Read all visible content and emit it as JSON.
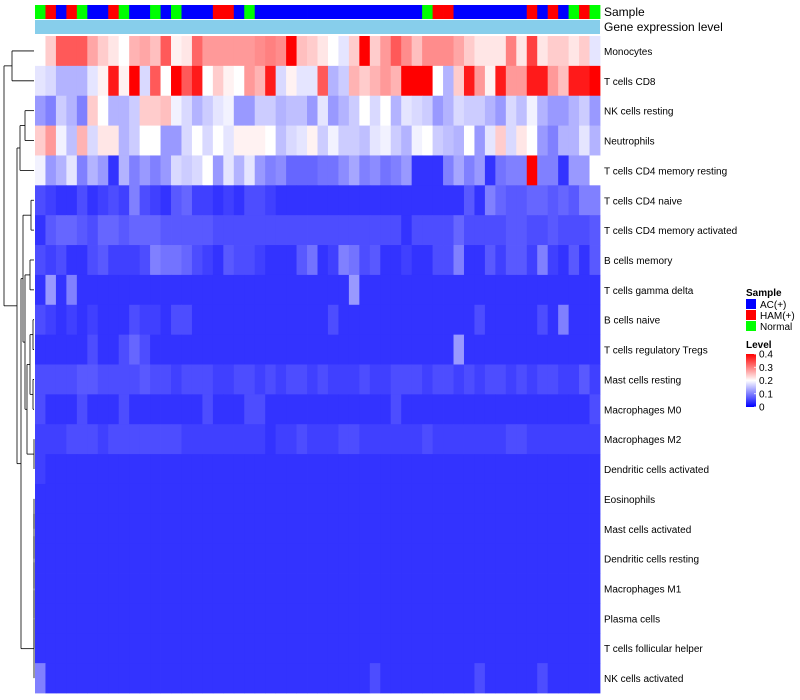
{
  "chart_data": {
    "type": "heatmap",
    "annotation_rows": {
      "sample": {
        "label": "Sample",
        "values": [
          "Normal",
          "HAM(+)",
          "AC(+)",
          "HAM(+)",
          "Normal",
          "AC(+)",
          "AC(+)",
          "HAM(+)",
          "Normal",
          "AC(+)",
          "AC(+)",
          "Normal",
          "AC(+)",
          "Normal",
          "AC(+)",
          "AC(+)",
          "AC(+)",
          "HAM(+)",
          "HAM(+)",
          "AC(+)",
          "Normal",
          "AC(+)",
          "AC(+)",
          "AC(+)",
          "AC(+)",
          "AC(+)",
          "AC(+)",
          "AC(+)",
          "AC(+)",
          "AC(+)",
          "AC(+)",
          "AC(+)",
          "AC(+)",
          "AC(+)",
          "AC(+)",
          "AC(+)",
          "AC(+)",
          "Normal",
          "HAM(+)",
          "HAM(+)",
          "AC(+)",
          "AC(+)",
          "AC(+)",
          "AC(+)",
          "AC(+)",
          "AC(+)",
          "AC(+)",
          "HAM(+)",
          "AC(+)",
          "HAM(+)",
          "AC(+)",
          "Normal",
          "HAM(+)",
          "Normal"
        ]
      },
      "gene_expression": {
        "label": "Gene expression level",
        "color": "#87CEEB"
      }
    },
    "legend_sample": {
      "title": "Sample",
      "entries": [
        {
          "label": "AC(+)",
          "color": "#0000FF"
        },
        {
          "label": "HAM(+)",
          "color": "#FF0000"
        },
        {
          "label": "Normal",
          "color": "#00FF00"
        }
      ]
    },
    "legend_level": {
      "title": "Level",
      "ticks": [
        "0.4",
        "0.3",
        "0.2",
        "0.1",
        "0"
      ],
      "tick_values": [
        0.4,
        0.3,
        0.2,
        0.1,
        0
      ],
      "range": [
        0,
        0.4
      ],
      "colors": {
        "low": "#0000FF",
        "mid": "#FFFFFF",
        "high": "#FF0000"
      }
    },
    "rows": [
      "Monocytes",
      "T cells CD8",
      "NK cells resting",
      "Neutrophils",
      "T cells CD4 memory resting",
      "T cells CD4 naive",
      "T cells CD4 memory activated",
      "B cells memory",
      "T cells gamma delta",
      "B cells naive",
      "T cells regulatory  Tregs",
      "Mast cells resting",
      "Macrophages M0",
      "Macrophages M2",
      "Dendritic cells activated",
      "Eosinophils",
      "Mast cells activated",
      "Dendritic cells resting",
      "Macrophages M1",
      "Plasma cells",
      "T cells follicular helper",
      "NK cells activated"
    ],
    "n_cols": 54,
    "row_levels": [
      [
        0.2,
        0.24,
        0.33,
        0.33,
        0.33,
        0.27,
        0.24,
        0.22,
        0.2,
        0.26,
        0.27,
        0.25,
        0.33,
        0.21,
        0.22,
        0.32,
        0.28,
        0.28,
        0.28,
        0.28,
        0.28,
        0.29,
        0.3,
        0.29,
        0.4,
        0.25,
        0.24,
        0.22,
        0.2,
        0.18,
        0.24,
        0.4,
        0.24,
        0.28,
        0.33,
        0.29,
        0.25,
        0.29,
        0.29,
        0.29,
        0.27,
        0.24,
        0.22,
        0.22,
        0.22,
        0.3,
        0.22,
        0.35,
        0.22,
        0.24,
        0.24,
        0.22,
        0.24,
        0.18
      ],
      [
        0.18,
        0.17,
        0.14,
        0.14,
        0.14,
        0.18,
        0.21,
        0.38,
        0.21,
        0.4,
        0.17,
        0.33,
        0.2,
        0.4,
        0.33,
        0.38,
        0.2,
        0.24,
        0.21,
        0.2,
        0.28,
        0.26,
        0.38,
        0.17,
        0.21,
        0.18,
        0.18,
        0.33,
        0.14,
        0.16,
        0.26,
        0.24,
        0.26,
        0.28,
        0.26,
        0.4,
        0.4,
        0.4,
        0.2,
        0.14,
        0.24,
        0.38,
        0.28,
        0.21,
        0.38,
        0.28,
        0.28,
        0.38,
        0.38,
        0.28,
        0.25,
        0.38,
        0.38,
        0.4
      ],
      [
        0.12,
        0.1,
        0.16,
        0.14,
        0.1,
        0.24,
        0.2,
        0.14,
        0.14,
        0.16,
        0.24,
        0.24,
        0.25,
        0.19,
        0.17,
        0.14,
        0.16,
        0.18,
        0.19,
        0.12,
        0.12,
        0.16,
        0.16,
        0.14,
        0.15,
        0.15,
        0.12,
        0.18,
        0.12,
        0.14,
        0.16,
        0.2,
        0.17,
        0.2,
        0.14,
        0.18,
        0.17,
        0.16,
        0.12,
        0.14,
        0.17,
        0.16,
        0.16,
        0.14,
        0.12,
        0.17,
        0.15,
        0.19,
        0.14,
        0.12,
        0.12,
        0.14,
        0.16,
        0.12
      ],
      [
        0.24,
        0.28,
        0.19,
        0.15,
        0.26,
        0.17,
        0.22,
        0.22,
        0.14,
        0.16,
        0.2,
        0.2,
        0.12,
        0.12,
        0.17,
        0.2,
        0.17,
        0.2,
        0.18,
        0.21,
        0.21,
        0.21,
        0.2,
        0.15,
        0.17,
        0.18,
        0.21,
        0.16,
        0.19,
        0.16,
        0.16,
        0.15,
        0.18,
        0.19,
        0.16,
        0.14,
        0.19,
        0.2,
        0.16,
        0.15,
        0.14,
        0.2,
        0.12,
        0.18,
        0.24,
        0.17,
        0.22,
        0.2,
        0.12,
        0.1,
        0.14,
        0.14,
        0.18,
        0.14
      ],
      [
        0.19,
        0.12,
        0.14,
        0.18,
        0.1,
        0.14,
        0.12,
        0.04,
        0.14,
        0.1,
        0.12,
        0.1,
        0.12,
        0.17,
        0.16,
        0.17,
        0.2,
        0.12,
        0.18,
        0.14,
        0.18,
        0.12,
        0.1,
        0.11,
        0.08,
        0.08,
        0.08,
        0.09,
        0.09,
        0.11,
        0.13,
        0.1,
        0.11,
        0.09,
        0.1,
        0.12,
        0.04,
        0.04,
        0.04,
        0.1,
        0.13,
        0.1,
        0.12,
        0.04,
        0.09,
        0.1,
        0.1,
        0.4,
        0.1,
        0.1,
        0.04,
        0.12,
        0.12,
        0.2
      ],
      [
        0.06,
        0.05,
        0.04,
        0.04,
        0.06,
        0.04,
        0.05,
        0.06,
        0.05,
        0.1,
        0.06,
        0.05,
        0.04,
        0.07,
        0.08,
        0.05,
        0.05,
        0.04,
        0.05,
        0.04,
        0.06,
        0.06,
        0.05,
        0.04,
        0.04,
        0.04,
        0.04,
        0.04,
        0.04,
        0.04,
        0.04,
        0.04,
        0.04,
        0.04,
        0.04,
        0.04,
        0.04,
        0.04,
        0.04,
        0.04,
        0.04,
        0.07,
        0.04,
        0.1,
        0.08,
        0.07,
        0.07,
        0.08,
        0.08,
        0.07,
        0.08,
        0.07,
        0.1,
        0.1
      ],
      [
        0.04,
        0.07,
        0.08,
        0.08,
        0.07,
        0.06,
        0.08,
        0.08,
        0.07,
        0.08,
        0.08,
        0.08,
        0.07,
        0.07,
        0.07,
        0.07,
        0.07,
        0.06,
        0.06,
        0.06,
        0.06,
        0.06,
        0.06,
        0.06,
        0.06,
        0.06,
        0.06,
        0.06,
        0.06,
        0.06,
        0.06,
        0.06,
        0.06,
        0.06,
        0.06,
        0.04,
        0.06,
        0.06,
        0.06,
        0.06,
        0.08,
        0.06,
        0.06,
        0.06,
        0.06,
        0.07,
        0.07,
        0.06,
        0.06,
        0.07,
        0.06,
        0.06,
        0.06,
        0.07
      ],
      [
        0.06,
        0.05,
        0.06,
        0.04,
        0.04,
        0.06,
        0.07,
        0.05,
        0.05,
        0.05,
        0.06,
        0.1,
        0.09,
        0.09,
        0.08,
        0.06,
        0.05,
        0.04,
        0.07,
        0.06,
        0.06,
        0.05,
        0.04,
        0.04,
        0.04,
        0.07,
        0.09,
        0.04,
        0.05,
        0.1,
        0.09,
        0.06,
        0.07,
        0.04,
        0.04,
        0.05,
        0.04,
        0.04,
        0.06,
        0.06,
        0.1,
        0.04,
        0.04,
        0.07,
        0.05,
        0.07,
        0.07,
        0.05,
        0.1,
        0.05,
        0.04,
        0.07,
        0.04,
        0.07
      ],
      [
        0.04,
        0.12,
        0.04,
        0.1,
        0.04,
        0.04,
        0.04,
        0.04,
        0.04,
        0.04,
        0.04,
        0.04,
        0.04,
        0.04,
        0.04,
        0.04,
        0.04,
        0.04,
        0.04,
        0.04,
        0.04,
        0.04,
        0.04,
        0.04,
        0.04,
        0.04,
        0.04,
        0.04,
        0.04,
        0.04,
        0.12,
        0.04,
        0.04,
        0.04,
        0.04,
        0.04,
        0.04,
        0.04,
        0.04,
        0.04,
        0.04,
        0.04,
        0.04,
        0.04,
        0.04,
        0.04,
        0.04,
        0.04,
        0.04,
        0.04,
        0.04,
        0.04,
        0.04,
        0.04
      ],
      [
        0.06,
        0.05,
        0.04,
        0.05,
        0.04,
        0.05,
        0.04,
        0.04,
        0.04,
        0.06,
        0.05,
        0.05,
        0.04,
        0.06,
        0.06,
        0.04,
        0.04,
        0.04,
        0.04,
        0.04,
        0.04,
        0.04,
        0.04,
        0.04,
        0.04,
        0.04,
        0.04,
        0.04,
        0.06,
        0.04,
        0.04,
        0.04,
        0.04,
        0.04,
        0.04,
        0.04,
        0.04,
        0.04,
        0.04,
        0.04,
        0.04,
        0.04,
        0.06,
        0.04,
        0.04,
        0.04,
        0.04,
        0.04,
        0.06,
        0.04,
        0.1,
        0.04,
        0.04,
        0.04
      ],
      [
        0.04,
        0.04,
        0.04,
        0.04,
        0.04,
        0.06,
        0.04,
        0.04,
        0.06,
        0.08,
        0.06,
        0.04,
        0.04,
        0.04,
        0.04,
        0.04,
        0.04,
        0.04,
        0.04,
        0.04,
        0.04,
        0.04,
        0.04,
        0.04,
        0.04,
        0.04,
        0.04,
        0.04,
        0.04,
        0.04,
        0.04,
        0.04,
        0.04,
        0.04,
        0.04,
        0.04,
        0.04,
        0.04,
        0.04,
        0.04,
        0.12,
        0.04,
        0.04,
        0.04,
        0.04,
        0.04,
        0.04,
        0.04,
        0.04,
        0.04,
        0.04,
        0.04,
        0.04,
        0.04
      ],
      [
        0.06,
        0.06,
        0.06,
        0.06,
        0.07,
        0.07,
        0.06,
        0.06,
        0.06,
        0.06,
        0.07,
        0.06,
        0.06,
        0.05,
        0.06,
        0.06,
        0.06,
        0.05,
        0.05,
        0.06,
        0.06,
        0.05,
        0.06,
        0.05,
        0.06,
        0.06,
        0.05,
        0.06,
        0.05,
        0.05,
        0.05,
        0.06,
        0.05,
        0.05,
        0.06,
        0.06,
        0.06,
        0.05,
        0.06,
        0.06,
        0.05,
        0.06,
        0.05,
        0.06,
        0.06,
        0.05,
        0.06,
        0.05,
        0.06,
        0.06,
        0.05,
        0.05,
        0.07,
        0.05
      ],
      [
        0.06,
        0.04,
        0.04,
        0.04,
        0.06,
        0.04,
        0.04,
        0.04,
        0.06,
        0.04,
        0.04,
        0.04,
        0.04,
        0.04,
        0.04,
        0.04,
        0.06,
        0.04,
        0.04,
        0.04,
        0.06,
        0.06,
        0.04,
        0.04,
        0.04,
        0.04,
        0.04,
        0.04,
        0.04,
        0.04,
        0.04,
        0.04,
        0.04,
        0.04,
        0.06,
        0.04,
        0.04,
        0.04,
        0.04,
        0.04,
        0.04,
        0.04,
        0.04,
        0.04,
        0.04,
        0.04,
        0.04,
        0.04,
        0.04,
        0.04,
        0.04,
        0.04,
        0.04,
        0.06
      ],
      [
        0.05,
        0.05,
        0.05,
        0.06,
        0.06,
        0.06,
        0.05,
        0.06,
        0.06,
        0.06,
        0.06,
        0.06,
        0.06,
        0.06,
        0.05,
        0.05,
        0.05,
        0.05,
        0.05,
        0.05,
        0.05,
        0.05,
        0.04,
        0.05,
        0.05,
        0.06,
        0.05,
        0.05,
        0.05,
        0.06,
        0.06,
        0.05,
        0.05,
        0.05,
        0.05,
        0.05,
        0.05,
        0.06,
        0.05,
        0.05,
        0.05,
        0.05,
        0.05,
        0.05,
        0.05,
        0.06,
        0.06,
        0.05,
        0.05,
        0.05,
        0.05,
        0.05,
        0.05,
        0.05
      ],
      [
        0.05,
        0.04,
        0.04,
        0.04,
        0.04,
        0.04,
        0.04,
        0.04,
        0.04,
        0.04,
        0.04,
        0.04,
        0.04,
        0.04,
        0.04,
        0.04,
        0.04,
        0.04,
        0.04,
        0.04,
        0.04,
        0.04,
        0.04,
        0.04,
        0.04,
        0.04,
        0.04,
        0.04,
        0.04,
        0.04,
        0.04,
        0.04,
        0.04,
        0.04,
        0.04,
        0.04,
        0.04,
        0.04,
        0.04,
        0.04,
        0.04,
        0.04,
        0.04,
        0.04,
        0.04,
        0.04,
        0.04,
        0.04,
        0.04,
        0.04,
        0.04,
        0.04,
        0.04,
        0.04
      ],
      [
        0.04,
        0.04,
        0.04,
        0.04,
        0.04,
        0.04,
        0.04,
        0.04,
        0.04,
        0.04,
        0.04,
        0.04,
        0.04,
        0.04,
        0.04,
        0.04,
        0.04,
        0.04,
        0.04,
        0.04,
        0.04,
        0.04,
        0.04,
        0.04,
        0.04,
        0.04,
        0.04,
        0.04,
        0.04,
        0.04,
        0.04,
        0.04,
        0.04,
        0.04,
        0.04,
        0.04,
        0.04,
        0.04,
        0.04,
        0.04,
        0.04,
        0.04,
        0.04,
        0.04,
        0.04,
        0.04,
        0.04,
        0.04,
        0.04,
        0.04,
        0.04,
        0.04,
        0.04,
        0.04
      ],
      [
        0.04,
        0.04,
        0.04,
        0.04,
        0.04,
        0.04,
        0.04,
        0.04,
        0.04,
        0.04,
        0.04,
        0.04,
        0.04,
        0.04,
        0.04,
        0.04,
        0.04,
        0.04,
        0.04,
        0.04,
        0.04,
        0.04,
        0.04,
        0.04,
        0.04,
        0.04,
        0.04,
        0.04,
        0.04,
        0.04,
        0.04,
        0.04,
        0.04,
        0.04,
        0.04,
        0.04,
        0.04,
        0.04,
        0.04,
        0.04,
        0.04,
        0.04,
        0.04,
        0.04,
        0.04,
        0.04,
        0.04,
        0.04,
        0.04,
        0.04,
        0.04,
        0.04,
        0.04,
        0.04
      ],
      [
        0.04,
        0.04,
        0.04,
        0.04,
        0.04,
        0.04,
        0.04,
        0.04,
        0.04,
        0.04,
        0.04,
        0.04,
        0.04,
        0.04,
        0.04,
        0.04,
        0.04,
        0.04,
        0.04,
        0.04,
        0.04,
        0.04,
        0.04,
        0.04,
        0.04,
        0.04,
        0.04,
        0.04,
        0.04,
        0.04,
        0.04,
        0.04,
        0.04,
        0.04,
        0.04,
        0.04,
        0.04,
        0.04,
        0.04,
        0.04,
        0.04,
        0.04,
        0.04,
        0.04,
        0.04,
        0.04,
        0.04,
        0.04,
        0.04,
        0.04,
        0.04,
        0.04,
        0.04,
        0.04
      ],
      [
        0.04,
        0.04,
        0.04,
        0.04,
        0.04,
        0.04,
        0.04,
        0.04,
        0.04,
        0.04,
        0.04,
        0.04,
        0.04,
        0.04,
        0.04,
        0.04,
        0.04,
        0.04,
        0.04,
        0.04,
        0.04,
        0.04,
        0.04,
        0.04,
        0.04,
        0.04,
        0.04,
        0.04,
        0.04,
        0.04,
        0.04,
        0.04,
        0.04,
        0.04,
        0.04,
        0.04,
        0.04,
        0.04,
        0.04,
        0.04,
        0.04,
        0.04,
        0.04,
        0.04,
        0.04,
        0.04,
        0.04,
        0.04,
        0.04,
        0.04,
        0.04,
        0.04,
        0.04,
        0.04
      ],
      [
        0.04,
        0.04,
        0.04,
        0.04,
        0.04,
        0.04,
        0.04,
        0.04,
        0.04,
        0.04,
        0.04,
        0.04,
        0.04,
        0.04,
        0.04,
        0.04,
        0.04,
        0.04,
        0.04,
        0.04,
        0.04,
        0.04,
        0.04,
        0.04,
        0.04,
        0.04,
        0.04,
        0.04,
        0.04,
        0.04,
        0.04,
        0.04,
        0.04,
        0.04,
        0.04,
        0.04,
        0.04,
        0.04,
        0.04,
        0.04,
        0.04,
        0.04,
        0.04,
        0.04,
        0.04,
        0.04,
        0.04,
        0.04,
        0.04,
        0.04,
        0.04,
        0.04,
        0.04,
        0.04
      ],
      [
        0.04,
        0.04,
        0.04,
        0.04,
        0.04,
        0.04,
        0.04,
        0.04,
        0.04,
        0.04,
        0.04,
        0.04,
        0.04,
        0.04,
        0.04,
        0.04,
        0.04,
        0.04,
        0.04,
        0.04,
        0.04,
        0.04,
        0.04,
        0.04,
        0.04,
        0.04,
        0.04,
        0.04,
        0.04,
        0.04,
        0.04,
        0.04,
        0.04,
        0.04,
        0.04,
        0.04,
        0.04,
        0.04,
        0.04,
        0.04,
        0.04,
        0.04,
        0.04,
        0.04,
        0.04,
        0.04,
        0.04,
        0.04,
        0.04,
        0.04,
        0.04,
        0.04,
        0.04,
        0.04
      ],
      [
        0.1,
        0.04,
        0.04,
        0.04,
        0.04,
        0.04,
        0.04,
        0.04,
        0.04,
        0.04,
        0.04,
        0.04,
        0.04,
        0.04,
        0.04,
        0.04,
        0.04,
        0.04,
        0.04,
        0.04,
        0.04,
        0.04,
        0.04,
        0.04,
        0.04,
        0.04,
        0.04,
        0.04,
        0.04,
        0.04,
        0.04,
        0.04,
        0.06,
        0.04,
        0.04,
        0.04,
        0.04,
        0.04,
        0.04,
        0.04,
        0.04,
        0.04,
        0.06,
        0.04,
        0.04,
        0.04,
        0.04,
        0.04,
        0.06,
        0.04,
        0.04,
        0.04,
        0.04,
        0.04
      ]
    ]
  }
}
